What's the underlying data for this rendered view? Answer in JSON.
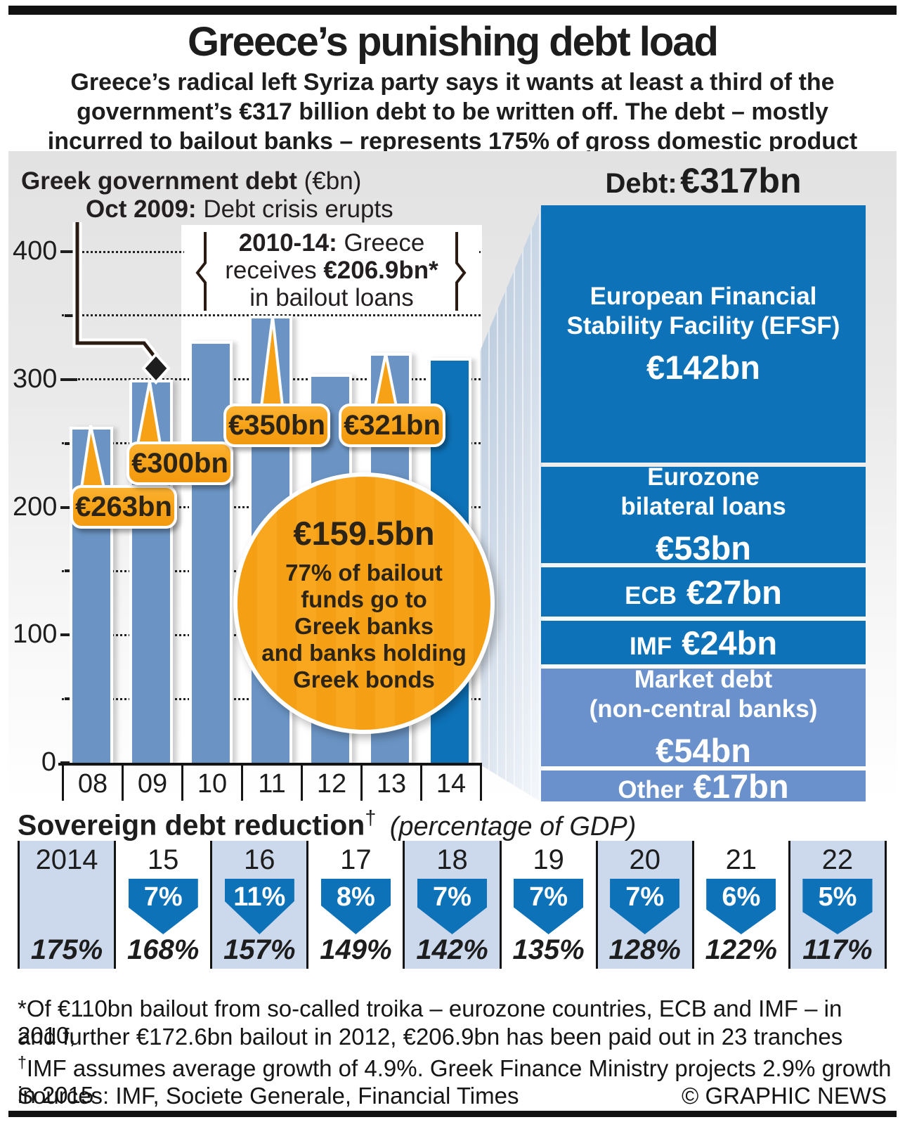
{
  "page": {
    "title": "Greece’s punishing debt load",
    "subtitle_lines": [
      "Greece’s radical left Syriza party says it wants at least a third of the",
      "government’s €317 billion debt to be written off. The debt – mostly",
      "incurred to bailout banks – represents 175% of gross domestic product"
    ]
  },
  "chart_data": [
    {
      "id": "greek-government-debt",
      "type": "bar",
      "title": "Greek government debt",
      "unit_label": "(€bn)",
      "categories": [
        "08",
        "09",
        "10",
        "11",
        "12",
        "13",
        "14"
      ],
      "values": [
        263,
        300,
        330,
        350,
        304,
        321,
        317
      ],
      "highlight_index": 6,
      "ylim": [
        0,
        440
      ],
      "y_major_ticks": [
        0,
        100,
        200,
        300,
        400
      ],
      "y_minor_step": 50,
      "grid": "dotted horizontal lines every 50",
      "bar_color": "#6b94c4",
      "highlight_color": "#0e72b8",
      "callouts": [
        {
          "category": "08",
          "label": "€263bn"
        },
        {
          "category": "09",
          "label": "€300bn"
        },
        {
          "category": "11",
          "label": "€350bn"
        },
        {
          "category": "13",
          "label": "€321bn"
        }
      ],
      "crisis_annotation": {
        "bold": "Oct 2009:",
        "rest": " Debt crisis erupts"
      },
      "bailout_annotation": {
        "line1_bold": "2010-14:",
        "line1_rest": " Greece",
        "line2_pre": "receives ",
        "line2_bold": "€206.9bn*",
        "line3": "in bailout loans"
      },
      "bailout_circle": {
        "value": "€159.5bn",
        "lines": [
          "77% of bailout",
          "funds go to",
          "Greek banks",
          "and banks holding",
          "Greek bonds"
        ],
        "color": "#f9a71f"
      }
    },
    {
      "id": "debt-breakdown",
      "type": "bar",
      "stacked": true,
      "title_label": "Debt:",
      "title_value": "€317bn",
      "total_bn": 317,
      "dark_color": "#0e72b8",
      "light_color": "#6b91cc",
      "segments": [
        {
          "id": "efsf",
          "name_lines": [
            "European Financial",
            "Stability Facility (EFSF)"
          ],
          "value_label": "€142bn",
          "value_bn": 142,
          "tone": "dark",
          "inline": false
        },
        {
          "id": "eurozone",
          "name_lines": [
            "Eurozone",
            "bilateral loans"
          ],
          "value_label": "€53bn",
          "value_bn": 53,
          "tone": "dark",
          "inline": false
        },
        {
          "id": "ecb",
          "name_lines": [
            "ECB"
          ],
          "value_label": "€27bn",
          "value_bn": 27,
          "tone": "dark",
          "inline": true
        },
        {
          "id": "imf",
          "name_lines": [
            "IMF"
          ],
          "value_label": "€24bn",
          "value_bn": 24,
          "tone": "dark",
          "inline": true
        },
        {
          "id": "market-debt",
          "name_lines": [
            "Market debt",
            "(non-central banks)"
          ],
          "value_label": "€54bn",
          "value_bn": 54,
          "tone": "light",
          "inline": false
        },
        {
          "id": "other",
          "name_lines": [
            "Other"
          ],
          "value_label": "€17bn",
          "value_bn": 17,
          "tone": "light",
          "inline": true
        }
      ]
    },
    {
      "id": "sovereign-debt-reduction",
      "type": "table",
      "heading": "Sovereign debt reduction",
      "heading_dagger": "†",
      "heading_note": "(percentage of GDP)",
      "arrow_color": "#0e72b8",
      "shaded_color": "#ccd9ec",
      "columns": [
        {
          "year": "2014",
          "reduction_pct": null,
          "gdp": "175%",
          "shaded": true
        },
        {
          "year": "15",
          "reduction_pct": "7%",
          "gdp": "168%",
          "shaded": false
        },
        {
          "year": "16",
          "reduction_pct": "11%",
          "gdp": "157%",
          "shaded": true
        },
        {
          "year": "17",
          "reduction_pct": "8%",
          "gdp": "149%",
          "shaded": false
        },
        {
          "year": "18",
          "reduction_pct": "7%",
          "gdp": "142%",
          "shaded": true
        },
        {
          "year": "19",
          "reduction_pct": "7%",
          "gdp": "135%",
          "shaded": false
        },
        {
          "year": "20",
          "reduction_pct": "7%",
          "gdp": "128%",
          "shaded": true
        },
        {
          "year": "21",
          "reduction_pct": "6%",
          "gdp": "122%",
          "shaded": false
        },
        {
          "year": "22",
          "reduction_pct": "5%",
          "gdp": "117%",
          "shaded": true
        }
      ]
    }
  ],
  "footnotes": {
    "line1": "*Of €110bn bailout from so-called troika – eurozone countries, ECB and IMF – in 2010,",
    "line2": "and further €172.6bn bailout in 2012, €206.9bn has been paid out in 23 tranches",
    "dagger": "†",
    "dagger_line": "IMF assumes average growth of 4.9%. Greek Finance Ministry projects 2.9% growth in 2015",
    "sources": "Sources: IMF, Societe Generale, Financial Times",
    "copyright": "© GRAPHIC NEWS"
  }
}
